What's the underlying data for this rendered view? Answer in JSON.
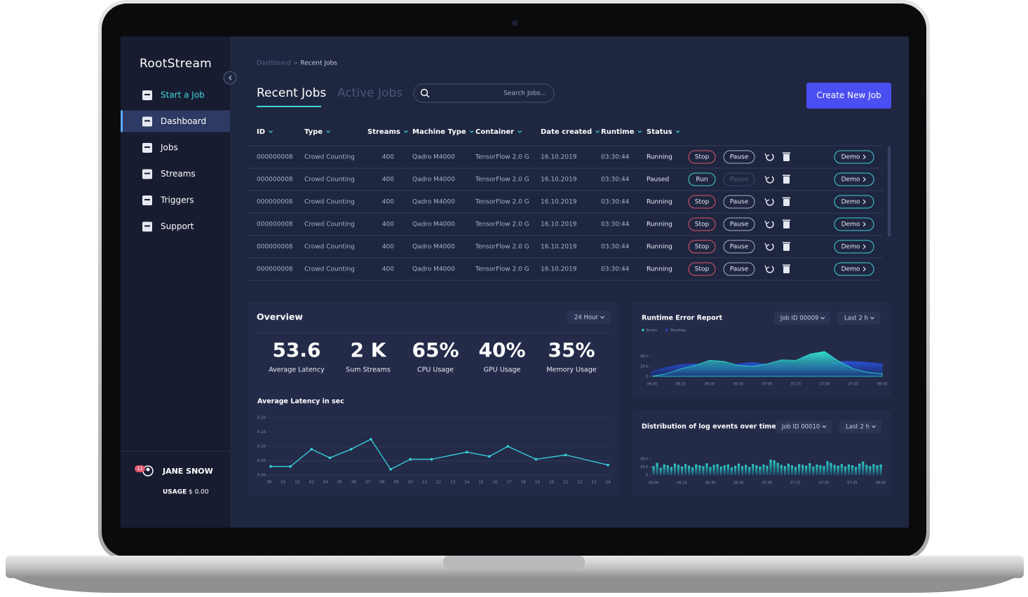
{
  "brand": "RootStream",
  "nav": [
    "Start a Job",
    "Dashboard",
    "Jobs",
    "Streams",
    "Triggers",
    "Support"
  ],
  "user": {
    "badge": "12",
    "name": "JANE SNOW",
    "usage_label": "USAGE",
    "usage_value": "$ 0.00"
  },
  "breadcrumb": {
    "items": [
      "Dashboard",
      "Recent Jobs"
    ],
    "separator": ">"
  },
  "tabs": [
    "Recent Jobs",
    "Active Jobs"
  ],
  "search_placeholder": "Search Jobs...",
  "create_button": "Create New Job",
  "table": {
    "columns": [
      "ID",
      "Type",
      "Streams",
      "Machine Type",
      "Container",
      "Date created",
      "Runtime",
      "Status"
    ],
    "rows": [
      {
        "cells": [
          "000000008",
          "Crowd Counting",
          400,
          "Qadro M4000",
          "TensorFlow 2.0 G",
          "16.10.2019",
          "03:30:44",
          "Running"
        ],
        "actions": [
          "Stop",
          "Pause"
        ],
        "link": "Demo"
      },
      {
        "cells": [
          "000000008",
          "Crowd Counting",
          400,
          "Qadro M4000",
          "TensorFlow 2.0 G",
          "16.10.2019",
          "03:30:44",
          "Paused"
        ],
        "actions": [
          "Run",
          "Pause"
        ],
        "link": "Demo"
      },
      {
        "cells": [
          "000000008",
          "Crowd Counting",
          400,
          "Qadro M4000",
          "TensorFlow 2.0 G",
          "16.10.2019",
          "03:30:44",
          "Running"
        ],
        "actions": [
          "Stop",
          "Pause"
        ],
        "link": "Demo"
      },
      {
        "cells": [
          "000000008",
          "Crowd Counting",
          400,
          "Qadro M4000",
          "TensorFlow 2.0 G",
          "16.10.2019",
          "03:30:44",
          "Running"
        ],
        "actions": [
          "Stop",
          "Pause"
        ],
        "link": "Demo"
      },
      {
        "cells": [
          "000000008",
          "Crowd Counting",
          400,
          "Qadro M4000",
          "TensorFlow 2.0 G",
          "16.10.2019",
          "03:30:44",
          "Running"
        ],
        "actions": [
          "Stop",
          "Pause"
        ],
        "link": "Demo"
      },
      {
        "cells": [
          "000000008",
          "Crowd Counting",
          400,
          "Qadro M4000",
          "TensorFlow 2.0 G",
          "16.10.2019",
          "03:30:44",
          "Running"
        ],
        "actions": [
          "Stop",
          "Pause"
        ],
        "link": "Demo"
      }
    ]
  },
  "overview": {
    "title": "Overview",
    "range": "24 Hour",
    "stats": [
      {
        "value": "53.6",
        "label": "Average Latency"
      },
      {
        "value": "2 K",
        "label": "Sum Streams"
      },
      {
        "value": "65%",
        "label": "CPU Usage"
      },
      {
        "value": "40%",
        "label": "GPU Usage"
      },
      {
        "value": "35%",
        "label": "Memory Usage"
      }
    ],
    "chart": {
      "type": "line",
      "title": "Average Latency in sec",
      "color": "#35d3e0",
      "grid": true,
      "x": [
        0.1,
        1.5,
        3,
        4.3,
        5.8,
        7.2,
        8.6,
        10,
        11.5,
        14,
        15.6,
        16.9,
        18.9,
        21,
        24
      ],
      "values": [
        0.03,
        0.03,
        0.09,
        0.06,
        0.09,
        0.125,
        0.02,
        0.055,
        0.055,
        0.08,
        0.065,
        0.1,
        0.055,
        0.07,
        0.035
      ],
      "xlim": [
        0,
        24
      ],
      "xticks": [
        {
          "value": 0,
          "label": "00"
        },
        {
          "value": 1,
          "label": "01"
        },
        {
          "value": 2,
          "label": "02"
        },
        {
          "value": 3,
          "label": "03"
        },
        {
          "value": 4,
          "label": "04"
        },
        {
          "value": 5,
          "label": "05"
        },
        {
          "value": 6,
          "label": "06"
        },
        {
          "value": 7,
          "label": "07"
        },
        {
          "value": 8,
          "label": "08"
        },
        {
          "value": 9,
          "label": "09"
        },
        10,
        11,
        12,
        13,
        14,
        15,
        16,
        17,
        18,
        19,
        20,
        21,
        22,
        23,
        24
      ],
      "ylim": [
        0,
        0.2
      ],
      "yticks": [
        {
          "value": 0,
          "label": "0.00"
        },
        0.05,
        {
          "value": 0.1,
          "label": "0.10"
        },
        0.15,
        {
          "value": 0.2,
          "label": "0.20"
        }
      ]
    }
  },
  "runtime": {
    "title": "Runtime Error Report",
    "job": "Job ID 00009",
    "period": "Last 2 h",
    "chart": {
      "type": "area",
      "categories": [
        "06:00",
        null,
        "06:15",
        null,
        "06:30",
        null,
        "06:45",
        null,
        "07:00",
        null,
        "07:15",
        null,
        "07:30",
        null,
        "07:45",
        null,
        "08:00"
      ],
      "series": [
        {
          "name": "Errors",
          "color": "#2fe0d0",
          "values": [
            0,
            5000,
            15000,
            22000,
            32000,
            30000,
            22000,
            20000,
            25000,
            33000,
            32000,
            45000,
            50000,
            30000,
            15000,
            8000,
            5000
          ]
        },
        {
          "name": "Throttles",
          "color": "#2547c9",
          "values": [
            10000,
            18000,
            24000,
            25000,
            20000,
            20000,
            25000,
            28000,
            24000,
            22000,
            20000,
            20000,
            24000,
            30000,
            30000,
            28000,
            25000
          ]
        }
      ],
      "ylim": [
        0,
        55000
      ],
      "yticks": [
        0,
        {
          "value": 20000,
          "label": "20 k"
        },
        {
          "value": 40000,
          "label": "40 k"
        }
      ]
    }
  },
  "distribution": {
    "title": "Distribution of log events over time",
    "job": "Job ID 00010",
    "period": "Last 2 h",
    "chart": {
      "type": "bar",
      "color": "#2fc6c6",
      "categories": [
        "06:00",
        null,
        null,
        null,
        null,
        null,
        null,
        null,
        "06:15",
        null,
        null,
        null,
        null,
        null,
        null,
        null,
        "06:30",
        null,
        null,
        null,
        null,
        null,
        null,
        null,
        "06:45",
        null,
        null,
        null,
        null,
        null,
        null,
        null,
        "07:00",
        null,
        null,
        null,
        null,
        null,
        null,
        null,
        "07:15",
        null,
        null,
        null,
        null,
        null,
        null,
        null,
        "07:30",
        null,
        null,
        null,
        null,
        null,
        null,
        null,
        "07:45",
        null,
        null,
        null,
        null,
        null,
        null,
        null,
        "08:00"
      ],
      "values": [
        22000,
        30000,
        18000,
        26000,
        24000,
        20000,
        28000,
        25000,
        21000,
        27000,
        23000,
        19000,
        26000,
        24000,
        22000,
        29000,
        20000,
        25000,
        27000,
        21000,
        24000,
        26000,
        19000,
        23000,
        28000,
        22000,
        25000,
        20000,
        27000,
        24000,
        21000,
        26000,
        23000,
        38000,
        36000,
        30000,
        25000,
        22000,
        28000,
        24000,
        20000,
        27000,
        25000,
        23000,
        29000,
        21000,
        26000,
        24000,
        22000,
        34000,
        30000,
        25000,
        23000,
        27000,
        21000,
        26000,
        24000,
        20000,
        28000,
        33000,
        25000,
        22000,
        27000,
        24000,
        26000
      ],
      "ylim": [
        0,
        50000
      ],
      "yticks": [
        0,
        {
          "value": 20000,
          "label": "20 k"
        },
        {
          "value": 40000,
          "label": "40 k"
        }
      ]
    }
  }
}
